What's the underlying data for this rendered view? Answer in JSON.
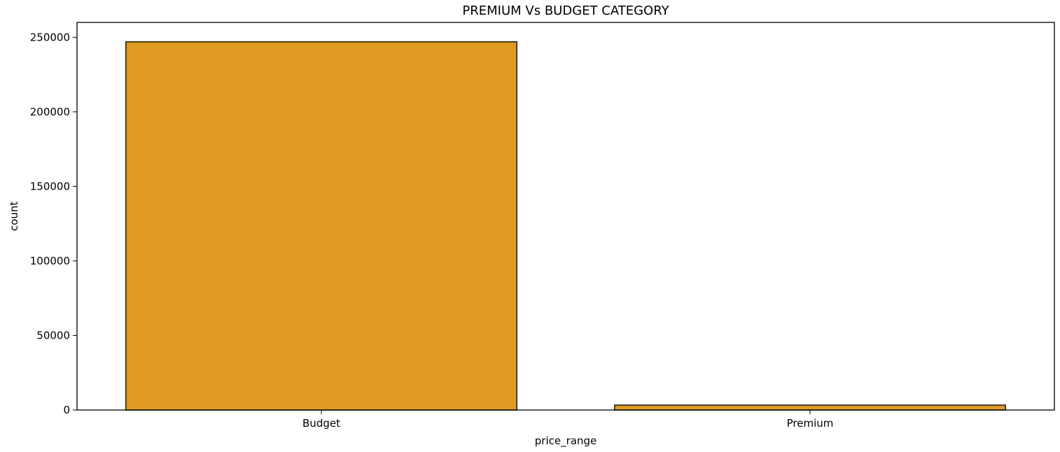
{
  "chart_data": {
    "type": "bar",
    "title": "PREMIUM Vs BUDGET CATEGORY",
    "xlabel": "price_range",
    "ylabel": "count",
    "categories": [
      "Budget",
      "Premium"
    ],
    "values": [
      247000,
      3300
    ],
    "ylim": [
      0,
      260000
    ],
    "yticks": [
      0,
      50000,
      100000,
      150000,
      200000,
      250000
    ],
    "ytick_labels": [
      "0",
      "50000",
      "100000",
      "150000",
      "200000",
      "250000"
    ],
    "grid": false,
    "legend": "none",
    "colors": {
      "bar": "#e09b22",
      "bar_edge": "#1a1a1a",
      "axes": "#000000"
    }
  }
}
